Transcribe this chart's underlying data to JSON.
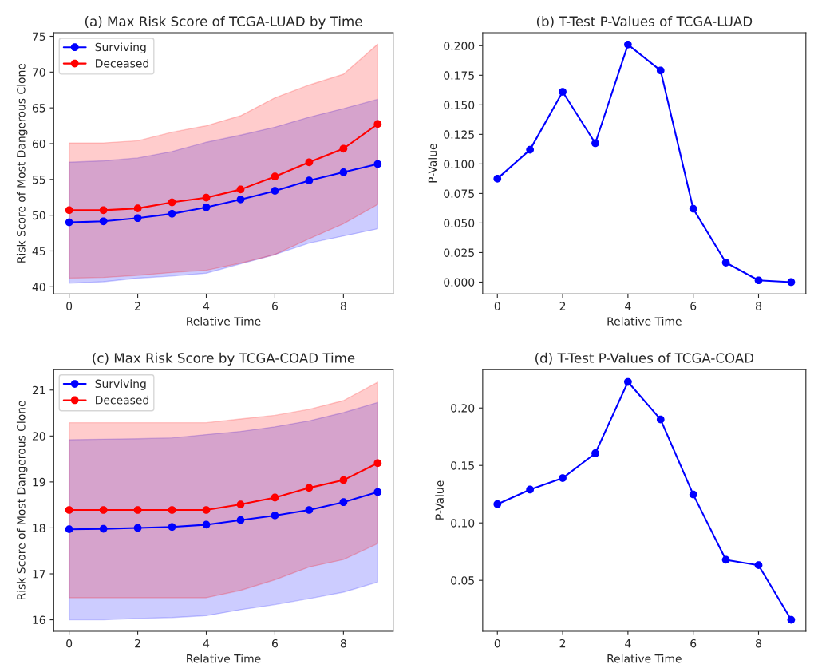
{
  "chart_data": [
    {
      "type": "line",
      "title": "(a) Max Risk Score of TCGA-LUAD by Time",
      "xlabel": "Relative Time",
      "ylabel": "Risk Score of Most Dangerous Clone",
      "x": [
        0,
        1,
        2,
        3,
        4,
        5,
        6,
        7,
        8,
        9
      ],
      "series": [
        {
          "name": "Surviving",
          "color": "#0000ff",
          "values": [
            49.0,
            49.15,
            49.6,
            50.2,
            51.1,
            52.2,
            53.4,
            54.85,
            56.0,
            57.15
          ],
          "lower": [
            40.5,
            40.7,
            41.2,
            41.5,
            41.9,
            43.2,
            44.5,
            46.1,
            47.1,
            48.1
          ],
          "upper": [
            57.4,
            57.6,
            58.0,
            58.9,
            60.2,
            61.2,
            62.3,
            63.7,
            64.9,
            66.2
          ]
        },
        {
          "name": "Deceased",
          "color": "#ff0000",
          "values": [
            50.7,
            50.7,
            50.95,
            51.8,
            52.45,
            53.6,
            55.4,
            57.4,
            59.3,
            62.75
          ],
          "lower": [
            41.2,
            41.3,
            41.6,
            42.0,
            42.3,
            43.3,
            44.5,
            46.7,
            48.8,
            51.5
          ],
          "upper": [
            60.1,
            60.1,
            60.4,
            61.6,
            62.5,
            63.9,
            66.4,
            68.2,
            69.7,
            73.9
          ]
        }
      ],
      "xlim": [
        -0.45,
        9.45
      ],
      "xticks": [
        0,
        2,
        4,
        6,
        8
      ],
      "ylim": [
        39,
        75.5
      ],
      "yticks": [
        40,
        45,
        50,
        55,
        60,
        65,
        70,
        75
      ],
      "marker": "circle",
      "line_style": "solid",
      "legend": "top left",
      "grid": false
    },
    {
      "type": "line",
      "title": "(b) T-Test P-Values of TCGA-LUAD",
      "xlabel": "Relative Time",
      "ylabel": "P-Value",
      "x": [
        0,
        1,
        2,
        3,
        4,
        5,
        6,
        7,
        8,
        9
      ],
      "series": [
        {
          "color": "#0000ff",
          "values": [
            0.0875,
            0.112,
            0.161,
            0.1175,
            0.201,
            0.179,
            0.062,
            0.0165,
            0.0015,
            0.0
          ]
        }
      ],
      "xlim": [
        -0.45,
        9.45
      ],
      "xticks": [
        0,
        2,
        4,
        6,
        8
      ],
      "ylim": [
        -0.01,
        0.211
      ],
      "yticks": [
        {
          "value": 0,
          "label": "0.000"
        },
        {
          "value": 0.025,
          "label": "0.025"
        },
        {
          "value": 0.05,
          "label": "0.050"
        },
        {
          "value": 0.075,
          "label": "0.075"
        },
        {
          "value": 0.1,
          "label": "0.100"
        },
        {
          "value": 0.125,
          "label": "0.125"
        },
        {
          "value": 0.15,
          "label": "0.150"
        },
        {
          "value": 0.175,
          "label": "0.175"
        },
        {
          "value": 0.2,
          "label": "0.200"
        }
      ],
      "marker": "circle",
      "line_style": "solid",
      "legend": false,
      "grid": false
    },
    {
      "type": "line",
      "title": "(c) Max Risk Score by TCGA-COAD Time",
      "xlabel": "Relative Time",
      "ylabel": "Risk Score of Most Dangerous Clone",
      "x": [
        0,
        1,
        2,
        3,
        4,
        5,
        6,
        7,
        8,
        9
      ],
      "series": [
        {
          "name": "Surviving",
          "color": "#0000ff",
          "values": [
            17.97,
            17.98,
            18.0,
            18.02,
            18.07,
            18.17,
            18.27,
            18.39,
            18.56,
            18.78
          ],
          "lower": [
            16.0,
            16.0,
            16.03,
            16.05,
            16.09,
            16.22,
            16.33,
            16.46,
            16.6,
            16.82
          ],
          "upper": [
            19.92,
            19.93,
            19.94,
            19.96,
            20.03,
            20.1,
            20.2,
            20.33,
            20.51,
            20.73
          ]
        },
        {
          "name": "Deceased",
          "color": "#ff0000",
          "values": [
            18.39,
            18.39,
            18.39,
            18.39,
            18.39,
            18.51,
            18.66,
            18.87,
            19.04,
            19.41
          ],
          "lower": [
            16.48,
            16.48,
            16.48,
            16.48,
            16.48,
            16.64,
            16.87,
            17.15,
            17.31,
            17.66
          ],
          "upper": [
            20.29,
            20.29,
            20.29,
            20.29,
            20.29,
            20.37,
            20.45,
            20.58,
            20.77,
            21.17
          ]
        }
      ],
      "xlim": [
        -0.45,
        9.45
      ],
      "xticks": [
        0,
        2,
        4,
        6,
        8
      ],
      "ylim": [
        15.75,
        21.45
      ],
      "yticks": [
        16,
        17,
        18,
        19,
        20,
        21
      ],
      "marker": "circle",
      "line_style": "solid",
      "legend": "top left",
      "grid": false
    },
    {
      "type": "line",
      "title": "(d) T-Test P-Values of TCGA-COAD",
      "xlabel": "Relative Time",
      "ylabel": "P-Value",
      "x": [
        0,
        1,
        2,
        3,
        4,
        5,
        6,
        7,
        8,
        9
      ],
      "series": [
        {
          "color": "#0000ff",
          "values": [
            0.1163,
            0.129,
            0.139,
            0.1606,
            0.2227,
            0.19,
            0.1247,
            0.0679,
            0.0632,
            0.0157
          ]
        }
      ],
      "xlim": [
        -0.45,
        9.45
      ],
      "xticks": [
        0,
        2,
        4,
        6,
        8
      ],
      "ylim": [
        0.0057,
        0.2336
      ],
      "yticks": [
        {
          "value": 0.05,
          "label": "0.05"
        },
        {
          "value": 0.1,
          "label": "0.10"
        },
        {
          "value": 0.15,
          "label": "0.15"
        },
        {
          "value": 0.2,
          "label": "0.20"
        }
      ],
      "marker": "circle",
      "line_style": "solid",
      "legend": false,
      "grid": false
    }
  ]
}
